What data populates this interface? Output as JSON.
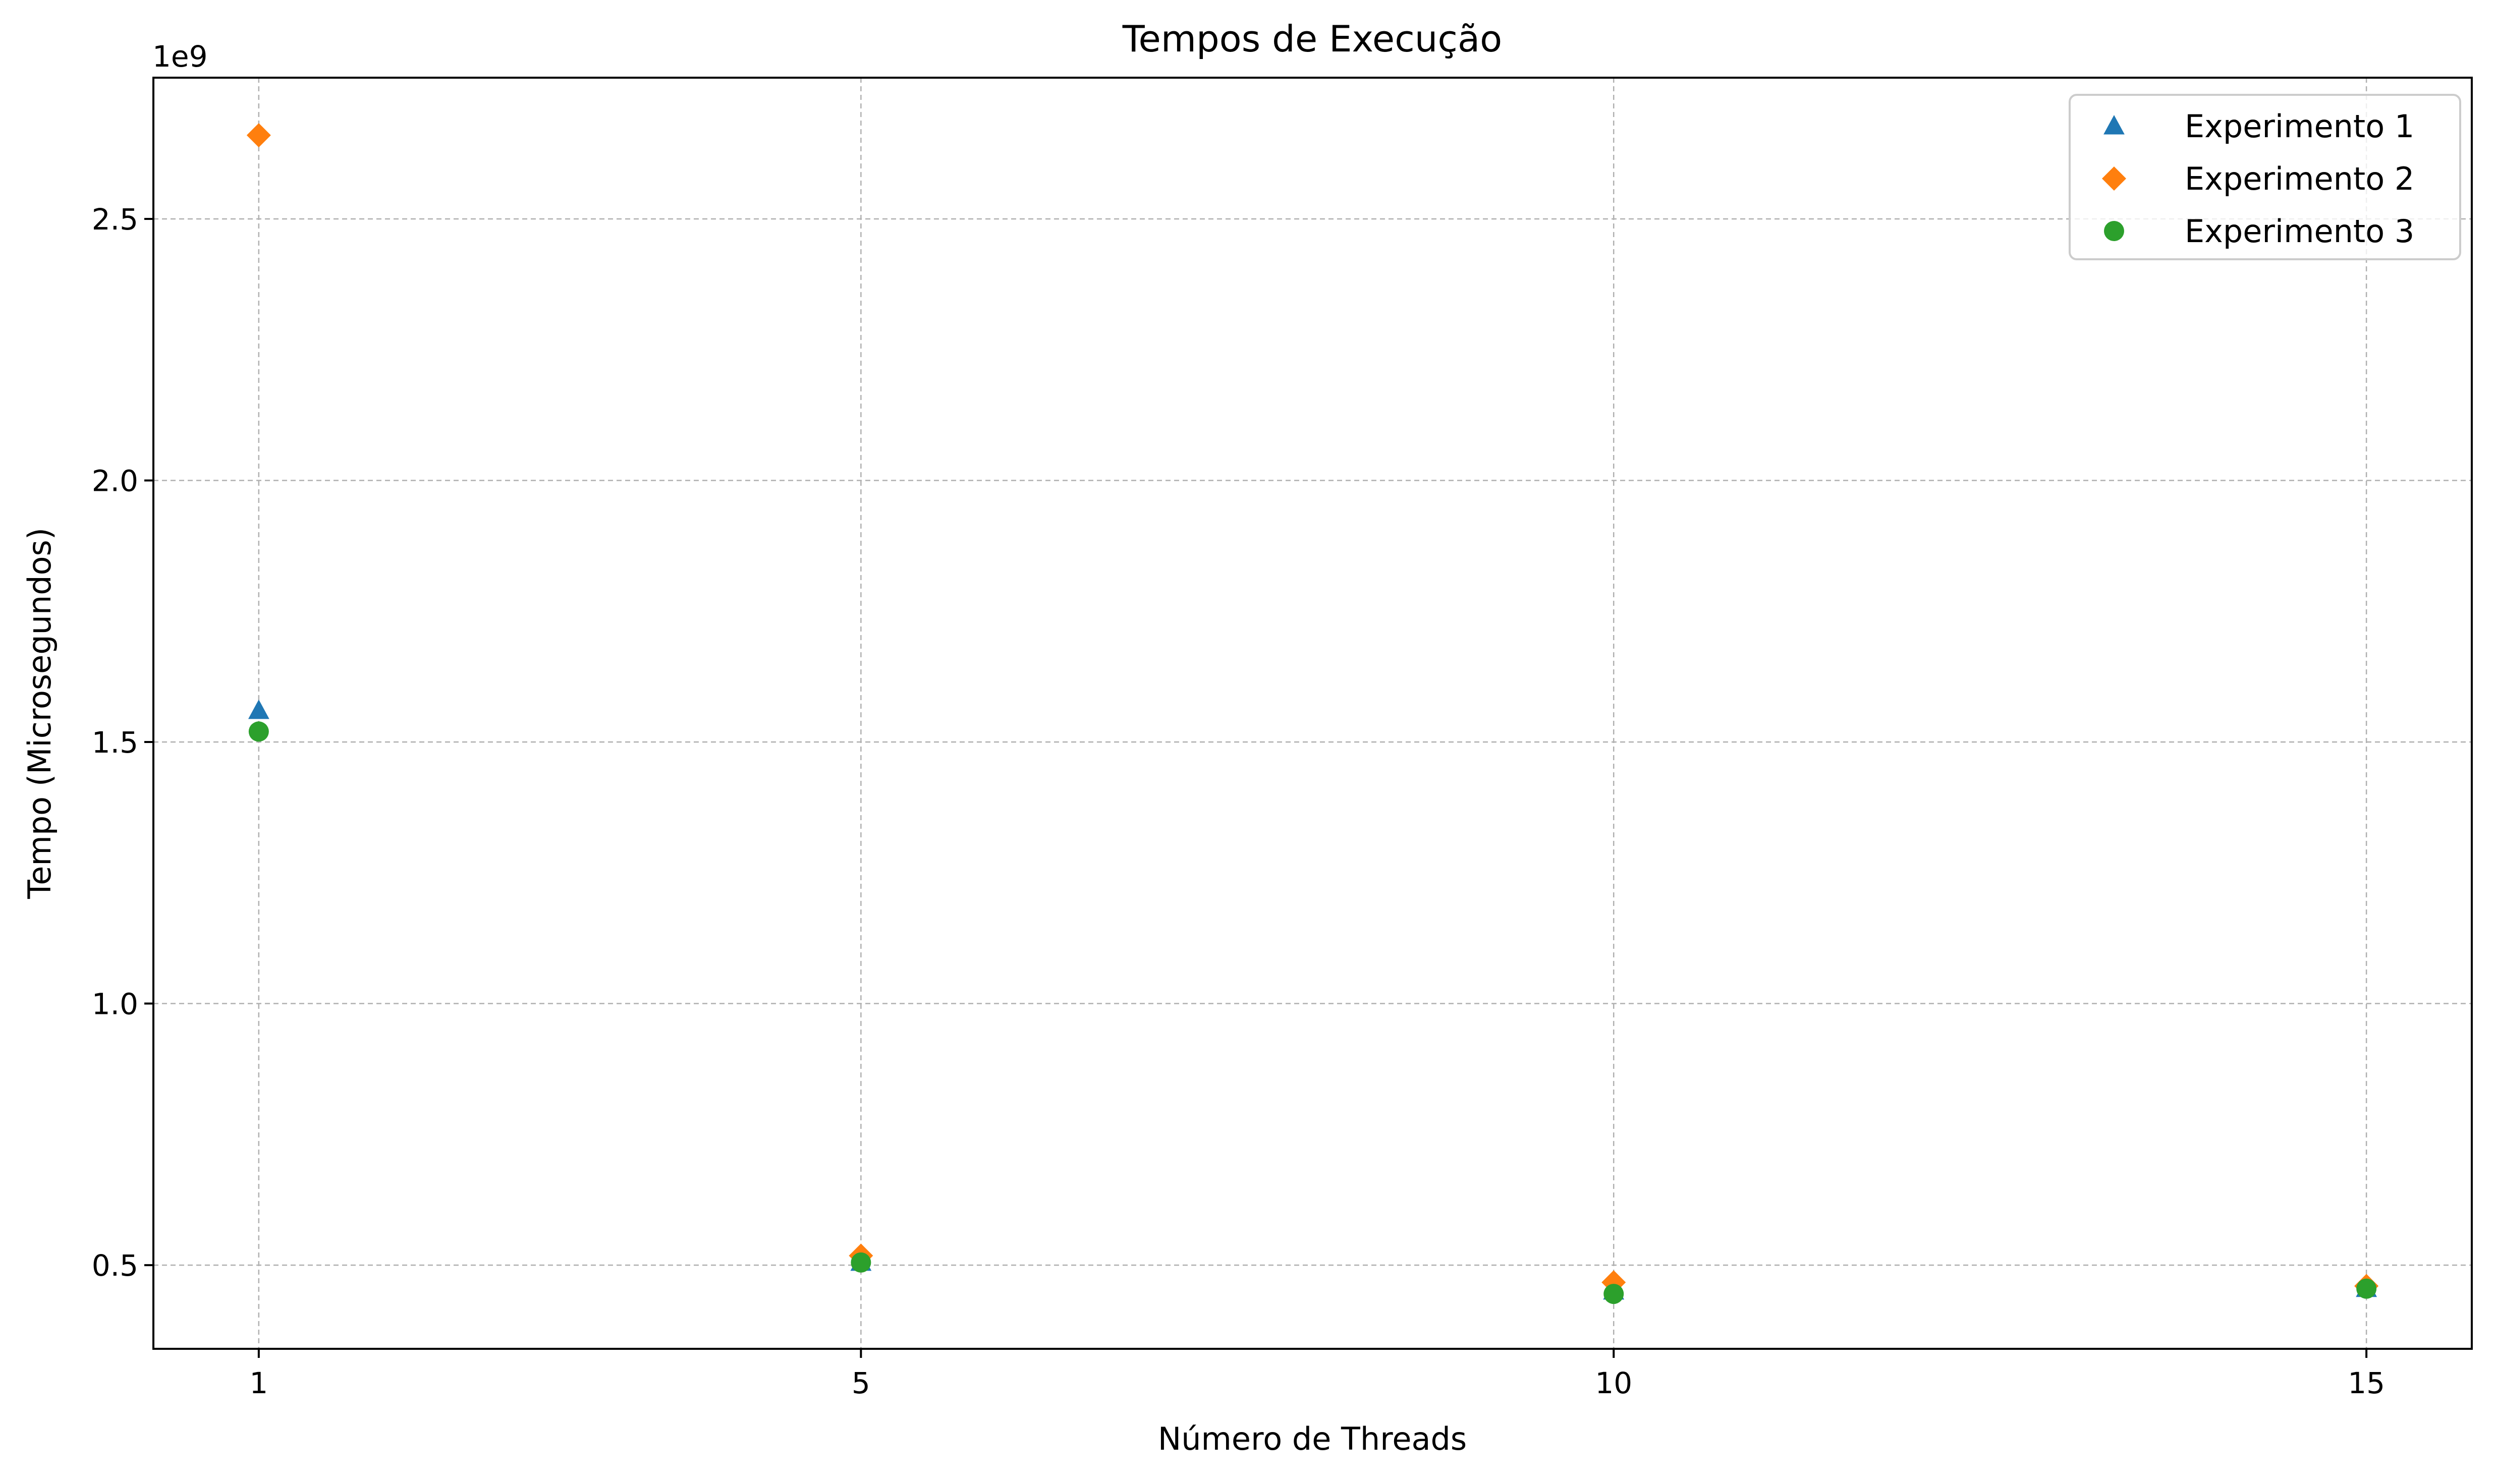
{
  "chart_data": {
    "type": "scatter",
    "title": "Tempos de Execução",
    "xlabel": "Número de Threads",
    "ylabel": "Tempo (Microsegundos)",
    "y_offset_label": "1e9",
    "x": [
      1,
      5,
      10,
      15
    ],
    "x_ticks": [
      1,
      5,
      10,
      15
    ],
    "x_tick_labels": [
      "1",
      "5",
      "10",
      "15"
    ],
    "y_ticks": [
      500000000,
      1000000000,
      1500000000,
      2000000000,
      2500000000
    ],
    "y_tick_labels": [
      "0.5",
      "1.0",
      "1.5",
      "2.0",
      "2.5"
    ],
    "xlim": [
      0.3,
      15.7
    ],
    "ylim": [
      340000000,
      2770000000
    ],
    "grid": true,
    "legend_position": "top-right",
    "series": [
      {
        "name": "Experimento 1",
        "marker": "triangle",
        "color": "#1f77b4",
        "values": [
          1560000000,
          505000000,
          450000000,
          455000000
        ]
      },
      {
        "name": "Experimento 2",
        "marker": "diamond",
        "color": "#ff7f0e",
        "values": [
          2660000000,
          518000000,
          467000000,
          460000000
        ]
      },
      {
        "name": "Experimento 3",
        "marker": "circle",
        "color": "#2ca02c",
        "values": [
          1520000000,
          505000000,
          445000000,
          455000000
        ]
      }
    ]
  }
}
